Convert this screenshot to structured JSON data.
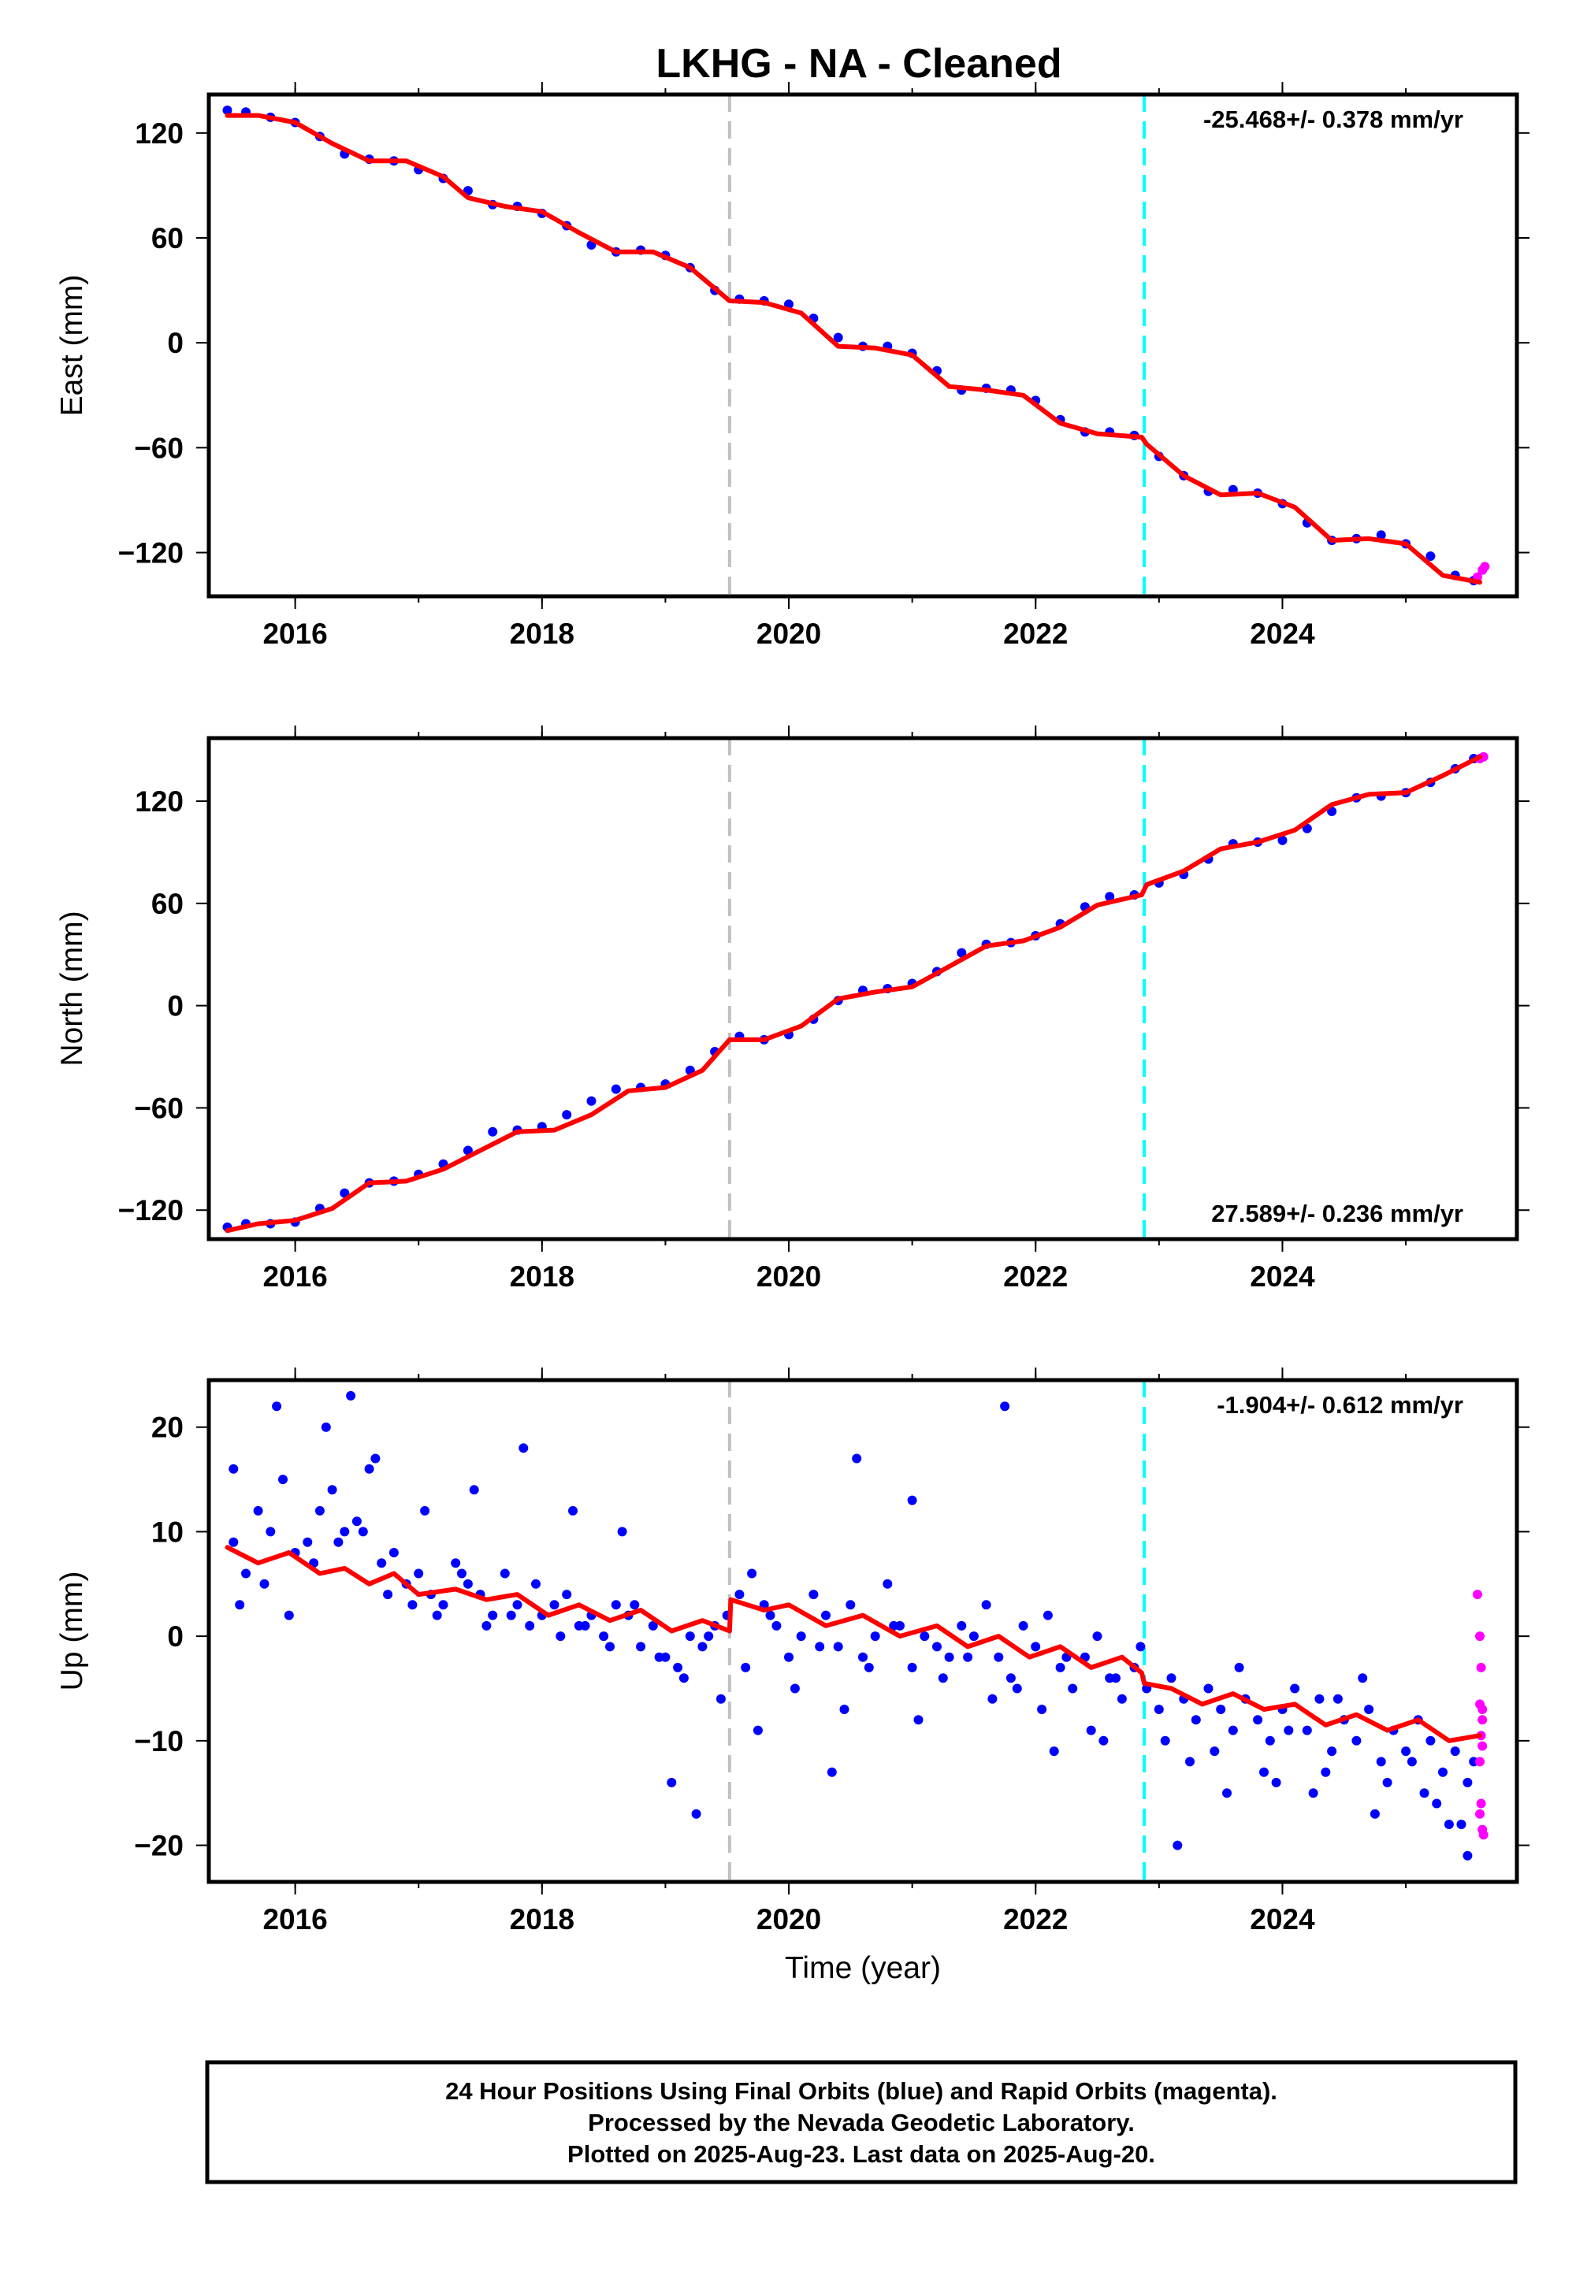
{
  "colors": {
    "final": "#0000ff",
    "rapid": "#ff00ff",
    "model": "#ff0000",
    "vline_gray": "#c0c0c0",
    "vline_cyan": "#00ffff"
  },
  "chart_data": [
    {
      "type": "scatter",
      "title": "LKHG  - NA - Cleaned",
      "panel": "east",
      "xlabel": "",
      "ylabel": "East (mm)",
      "xlim": [
        2015.3,
        2025.9
      ],
      "ylim": [
        -145,
        142
      ],
      "yticks": [
        -120,
        -60,
        0,
        60,
        120
      ],
      "xticks": [
        2016,
        2018,
        2020,
        2022,
        2024
      ],
      "rate_text": "-25.468+/- 0.378 mm/yr",
      "rate_position": "top-right",
      "vlines": [
        {
          "x": 2019.52,
          "style": "gray-dashed"
        },
        {
          "x": 2022.88,
          "style": "cyan-dashed"
        }
      ],
      "series": [
        {
          "kind": "model",
          "x": [
            2015.45,
            2015.7,
            2016.0,
            2016.3,
            2016.6,
            2016.9,
            2017.2,
            2017.4,
            2017.7,
            2018.0,
            2018.3,
            2018.6,
            2018.9,
            2019.2,
            2019.52,
            2019.8,
            2020.1,
            2020.4,
            2020.7,
            2021.0,
            2021.3,
            2021.6,
            2021.9,
            2022.2,
            2022.5,
            2022.86,
            2022.9,
            2023.2,
            2023.5,
            2023.8,
            2024.1,
            2024.4,
            2024.7,
            2025.0,
            2025.3,
            2025.6
          ],
          "y": [
            130,
            130,
            126,
            114,
            104,
            104,
            95,
            83,
            78,
            75,
            63,
            52,
            52,
            43,
            24,
            23,
            17,
            -2,
            -3,
            -7,
            -25,
            -27,
            -30,
            -46,
            -52,
            -54,
            -58,
            -76,
            -87,
            -86,
            -94,
            -113,
            -112,
            -115,
            -133,
            -137
          ]
        },
        {
          "kind": "final",
          "x": [
            2015.45,
            2015.6,
            2015.8,
            2016.0,
            2016.2,
            2016.4,
            2016.6,
            2016.8,
            2017.0,
            2017.2,
            2017.4,
            2017.6,
            2017.8,
            2018.0,
            2018.2,
            2018.4,
            2018.6,
            2018.8,
            2019.0,
            2019.2,
            2019.4,
            2019.6,
            2019.8,
            2020.0,
            2020.2,
            2020.4,
            2020.6,
            2020.8,
            2021.0,
            2021.2,
            2021.4,
            2021.6,
            2021.8,
            2022.0,
            2022.2,
            2022.4,
            2022.6,
            2022.8,
            2023.0,
            2023.2,
            2023.4,
            2023.6,
            2023.8,
            2024.0,
            2024.2,
            2024.4,
            2024.6,
            2024.8,
            2025.0,
            2025.2,
            2025.4,
            2025.55
          ],
          "y": [
            133,
            132,
            129,
            126,
            118,
            108,
            105,
            104,
            99,
            94,
            87,
            79,
            78,
            74,
            67,
            56,
            52,
            53,
            50,
            43,
            30,
            25,
            24,
            22,
            14,
            3,
            -2,
            -2,
            -6,
            -16,
            -27,
            -26,
            -27,
            -33,
            -44,
            -51,
            -51,
            -53,
            -65,
            -76,
            -85,
            -84,
            -86,
            -92,
            -103,
            -113,
            -112,
            -110,
            -115,
            -122,
            -133,
            -136
          ]
        },
        {
          "kind": "rapid",
          "x": [
            2025.58,
            2025.62,
            2025.64
          ],
          "y": [
            -134,
            -130,
            -128
          ]
        }
      ]
    },
    {
      "type": "scatter",
      "panel": "north",
      "xlabel": "",
      "ylabel": "North (mm)",
      "xlim": [
        2015.3,
        2025.9
      ],
      "ylim": [
        -137,
        157
      ],
      "yticks": [
        -120,
        -60,
        0,
        60,
        120
      ],
      "xticks": [
        2016,
        2018,
        2020,
        2022,
        2024
      ],
      "rate_text": "27.589+/- 0.236 mm/yr",
      "rate_position": "bottom-right",
      "vlines": [
        {
          "x": 2019.52,
          "style": "gray-dashed"
        },
        {
          "x": 2022.88,
          "style": "cyan-dashed"
        }
      ],
      "series": [
        {
          "kind": "model",
          "x": [
            2015.45,
            2015.7,
            2016.0,
            2016.3,
            2016.6,
            2016.9,
            2017.2,
            2017.5,
            2017.8,
            2018.1,
            2018.4,
            2018.7,
            2019.0,
            2019.3,
            2019.52,
            2019.8,
            2020.1,
            2020.4,
            2020.7,
            2021.0,
            2021.3,
            2021.6,
            2021.9,
            2022.2,
            2022.5,
            2022.86,
            2022.9,
            2023.2,
            2023.5,
            2023.8,
            2024.1,
            2024.4,
            2024.7,
            2025.0,
            2025.3,
            2025.6
          ],
          "y": [
            -132,
            -128,
            -126,
            -119,
            -104,
            -103,
            -96,
            -85,
            -74,
            -73,
            -64,
            -50,
            -48,
            -38,
            -20,
            -20,
            -12,
            4,
            8,
            11,
            23,
            35,
            38,
            46,
            59,
            65,
            71,
            79,
            92,
            96,
            103,
            118,
            124,
            125,
            135,
            146
          ]
        },
        {
          "kind": "final",
          "x": [
            2015.45,
            2015.6,
            2015.8,
            2016.0,
            2016.2,
            2016.4,
            2016.6,
            2016.8,
            2017.0,
            2017.2,
            2017.4,
            2017.6,
            2017.8,
            2018.0,
            2018.2,
            2018.4,
            2018.6,
            2018.8,
            2019.0,
            2019.2,
            2019.4,
            2019.6,
            2019.8,
            2020.0,
            2020.2,
            2020.4,
            2020.6,
            2020.8,
            2021.0,
            2021.2,
            2021.4,
            2021.6,
            2021.8,
            2022.0,
            2022.2,
            2022.4,
            2022.6,
            2022.8,
            2023.0,
            2023.2,
            2023.4,
            2023.6,
            2023.8,
            2024.0,
            2024.2,
            2024.4,
            2024.6,
            2024.8,
            2025.0,
            2025.2,
            2025.4,
            2025.55
          ],
          "y": [
            -130,
            -128,
            -128,
            -127,
            -119,
            -110,
            -104,
            -103,
            -99,
            -93,
            -85,
            -74,
            -73,
            -71,
            -64,
            -56,
            -49,
            -48,
            -46,
            -38,
            -27,
            -18,
            -20,
            -17,
            -8,
            3,
            9,
            10,
            13,
            20,
            31,
            36,
            37,
            41,
            48,
            58,
            64,
            65,
            72,
            77,
            86,
            95,
            96,
            97,
            104,
            114,
            122,
            123,
            125,
            131,
            139,
            145
          ]
        },
        {
          "kind": "rapid",
          "x": [
            2025.6,
            2025.63
          ],
          "y": [
            145,
            146
          ]
        }
      ]
    },
    {
      "type": "scatter",
      "panel": "up",
      "xlabel": "Time (year)",
      "ylabel": "Up (mm)",
      "xlim": [
        2015.3,
        2025.9
      ],
      "ylim": [
        -23.5,
        24.5
      ],
      "yticks": [
        -20,
        -10,
        0,
        10,
        20
      ],
      "xticks": [
        2016,
        2018,
        2020,
        2022,
        2024
      ],
      "rate_text": "-1.904+/- 0.612 mm/yr",
      "rate_position": "top-right",
      "vlines": [
        {
          "x": 2019.52,
          "style": "gray-dashed"
        },
        {
          "x": 2022.88,
          "style": "cyan-dashed"
        }
      ],
      "series": [
        {
          "kind": "model",
          "x": [
            2015.45,
            2015.7,
            2015.95,
            2016.2,
            2016.4,
            2016.6,
            2016.8,
            2017.0,
            2017.3,
            2017.55,
            2017.8,
            2018.05,
            2018.3,
            2018.55,
            2018.8,
            2019.05,
            2019.3,
            2019.52,
            2019.53,
            2019.8,
            2020.0,
            2020.3,
            2020.6,
            2020.9,
            2021.2,
            2021.45,
            2021.7,
            2021.95,
            2022.2,
            2022.45,
            2022.7,
            2022.86,
            2022.88,
            2023.1,
            2023.35,
            2023.6,
            2023.85,
            2024.1,
            2024.35,
            2024.6,
            2024.85,
            2025.1,
            2025.35,
            2025.6
          ],
          "y": [
            8.5,
            7.0,
            8.0,
            6.0,
            6.5,
            5.0,
            6.0,
            4.0,
            4.5,
            3.5,
            4.0,
            2.0,
            3.0,
            1.5,
            2.5,
            0.5,
            1.5,
            0.5,
            3.5,
            2.5,
            3.0,
            1.0,
            2.0,
            0.0,
            1.0,
            -1.0,
            0.0,
            -2.0,
            -1.0,
            -3.0,
            -2.0,
            -3.5,
            -4.5,
            -5.0,
            -6.5,
            -5.5,
            -7.0,
            -6.5,
            -8.5,
            -7.5,
            -9.0,
            -8.0,
            -10.0,
            -9.5
          ]
        },
        {
          "kind": "final",
          "x": [
            2015.5,
            2015.6,
            2015.7,
            2015.8,
            2015.9,
            2016.0,
            2016.1,
            2016.2,
            2016.3,
            2016.4,
            2016.5,
            2016.6,
            2016.7,
            2016.8,
            2016.9,
            2017.0,
            2017.1,
            2017.2,
            2017.3,
            2017.4,
            2017.5,
            2017.6,
            2017.7,
            2017.8,
            2017.9,
            2018.0,
            2018.1,
            2018.2,
            2018.3,
            2018.4,
            2018.5,
            2018.6,
            2018.7,
            2018.8,
            2018.9,
            2019.0,
            2019.1,
            2019.2,
            2019.3,
            2019.4,
            2019.5,
            2019.6,
            2019.7,
            2019.8,
            2019.9,
            2020.0,
            2020.1,
            2020.2,
            2020.3,
            2020.4,
            2020.5,
            2020.6,
            2020.7,
            2020.8,
            2020.9,
            2021.0,
            2021.1,
            2021.2,
            2021.3,
            2021.4,
            2021.5,
            2021.6,
            2021.7,
            2021.8,
            2021.9,
            2022.0,
            2022.1,
            2022.2,
            2022.3,
            2022.4,
            2022.5,
            2022.6,
            2022.7,
            2022.8,
            2022.9,
            2023.0,
            2023.1,
            2023.2,
            2023.3,
            2023.4,
            2023.5,
            2023.6,
            2023.7,
            2023.8,
            2023.9,
            2024.0,
            2024.1,
            2024.2,
            2024.3,
            2024.4,
            2024.5,
            2024.6,
            2024.7,
            2024.8,
            2024.9,
            2025.0,
            2025.1,
            2025.2,
            2025.3,
            2025.4,
            2025.5,
            2025.55,
            2015.55,
            2015.75,
            2015.95,
            2016.15,
            2016.35,
            2016.55,
            2016.75,
            2016.95,
            2017.15,
            2017.35,
            2017.55,
            2017.75,
            2017.95,
            2018.15,
            2018.35,
            2018.55,
            2018.75,
            2018.95,
            2019.15,
            2019.35,
            2019.45,
            2019.65,
            2019.85,
            2020.05,
            2020.25,
            2020.45,
            2020.65,
            2020.85,
            2021.05,
            2021.25,
            2021.45,
            2021.65,
            2021.85,
            2022.05,
            2022.25,
            2022.45,
            2022.65,
            2022.85,
            2023.05,
            2023.25,
            2023.45,
            2023.65,
            2023.85,
            2024.05,
            2024.25,
            2024.45,
            2024.65,
            2024.85,
            2025.05,
            2025.25,
            2025.45,
            2015.5,
            2015.85,
            2016.25,
            2016.45,
            2016.65,
            2017.05,
            2017.45,
            2017.85,
            2018.25,
            2018.65,
            2019.05,
            2019.25,
            2019.75,
            2020.35,
            2020.55,
            2021.0,
            2021.75,
            2022.15,
            2022.55,
            2023.15,
            2023.55,
            2023.95,
            2024.35,
            2024.75,
            2025.15,
            2025.35,
            2025.5
          ],
          "y": [
            9,
            6,
            12,
            10,
            15,
            8,
            9,
            12,
            14,
            10,
            11,
            16,
            7,
            8,
            5,
            6,
            4,
            3,
            7,
            5,
            4,
            2,
            6,
            3,
            1,
            2,
            3,
            4,
            1,
            2,
            0,
            3,
            2,
            -1,
            1,
            -2,
            -3,
            0,
            -1,
            1,
            2,
            4,
            6,
            3,
            1,
            -2,
            0,
            4,
            2,
            -1,
            3,
            -2,
            0,
            5,
            1,
            -3,
            0,
            -1,
            -2,
            1,
            0,
            3,
            -2,
            -4,
            1,
            -1,
            2,
            -3,
            -5,
            -2,
            0,
            -4,
            -6,
            -3,
            -5,
            -7,
            -4,
            -6,
            -8,
            -5,
            -7,
            -9,
            -6,
            -8,
            -10,
            -7,
            -5,
            -9,
            -6,
            -11,
            -8,
            -10,
            -7,
            -12,
            -9,
            -11,
            -8,
            -10,
            -13,
            -11,
            -14,
            -12,
            3,
            5,
            2,
            7,
            9,
            10,
            4,
            3,
            2,
            6,
            1,
            2,
            5,
            0,
            1,
            -1,
            3,
            -2,
            -4,
            0,
            -6,
            -3,
            2,
            -5,
            -1,
            -7,
            -3,
            1,
            -8,
            -4,
            -2,
            -6,
            -5,
            -7,
            -2,
            -9,
            -4,
            -1,
            -10,
            -12,
            -11,
            -3,
            -13,
            -9,
            -15,
            -6,
            -4,
            -14,
            -12,
            -16,
            -18,
            16,
            22,
            20,
            23,
            17,
            12,
            14,
            18,
            12,
            10,
            -14,
            -17,
            -9,
            -13,
            17,
            13,
            22,
            -11,
            -10,
            -20,
            -15,
            -14,
            -13,
            -17,
            -15,
            -18,
            -21
          ]
        },
        {
          "kind": "rapid",
          "x": [
            2025.58,
            2025.6,
            2025.61,
            2025.62,
            2025.6,
            2025.61,
            2025.62,
            2025.6,
            2025.62,
            2025.61,
            2025.63,
            2025.6,
            2025.62
          ],
          "y": [
            4,
            0,
            -3,
            -7,
            -6.5,
            -9.5,
            -10.5,
            -17,
            -18.5,
            -16,
            -19,
            -12,
            -8
          ]
        }
      ]
    }
  ],
  "footer": {
    "line1": "24 Hour Positions Using Final Orbits (blue) and Rapid Orbits (magenta).",
    "line2": "Processed by the Nevada Geodetic Laboratory.",
    "line3": "Plotted on 2025-Aug-23. Last data on 2025-Aug-20."
  }
}
